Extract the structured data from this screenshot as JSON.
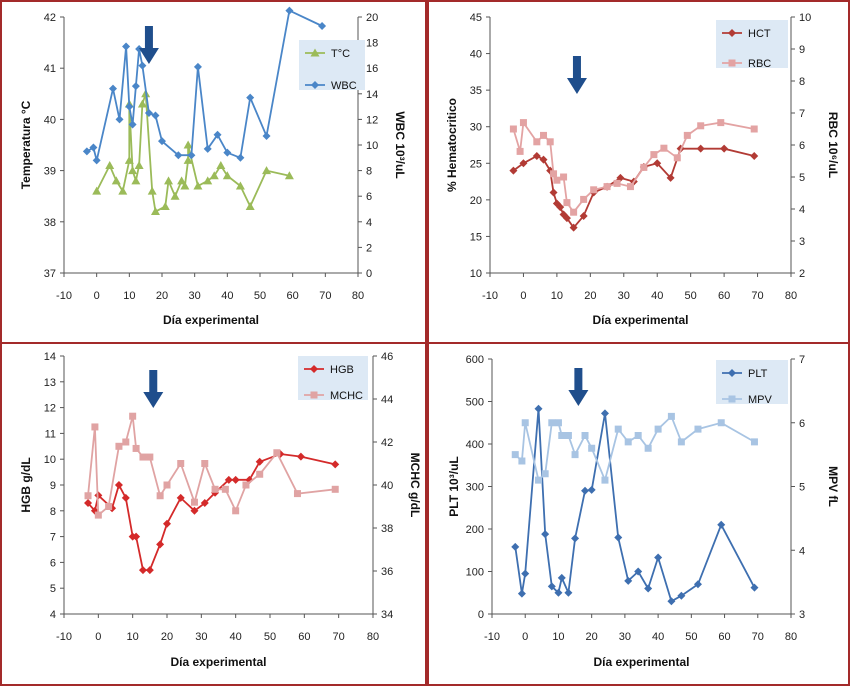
{
  "chart_data": [
    {
      "type": "line",
      "xlabel": "Día experimental",
      "ylabel_left": "Temperatura  °C",
      "ylabel_right": "WBC 10³/uL",
      "xlim": [
        -10,
        80
      ],
      "ylim_left": [
        37,
        42
      ],
      "ylim_right": [
        0,
        20
      ],
      "x_ticks": [
        "-10",
        "0",
        "10",
        "20",
        "30",
        "40",
        "50",
        "60",
        "70",
        "80"
      ],
      "y_ticks_left": [
        "37",
        "38",
        "39",
        "40",
        "41",
        "42"
      ],
      "y_ticks_right": [
        "0",
        "2",
        "4",
        "6",
        "8",
        "10",
        "12",
        "14",
        "16",
        "18",
        "20"
      ],
      "legend_position": "top-right",
      "arrow_day": 16,
      "series": [
        {
          "name": "T°C",
          "axis": "left",
          "color": "#9bbb59",
          "marker": "triangle",
          "points": [
            [
              0,
              38.6
            ],
            [
              4,
              39.1
            ],
            [
              6,
              38.8
            ],
            [
              8,
              38.6
            ],
            [
              10,
              39.2
            ],
            [
              10,
              40.3
            ],
            [
              11,
              39.0
            ],
            [
              12,
              38.8
            ],
            [
              13,
              39.1
            ],
            [
              14,
              40.3
            ],
            [
              15,
              40.5
            ],
            [
              17,
              38.6
            ],
            [
              18,
              38.2
            ],
            [
              21,
              38.3
            ],
            [
              22,
              38.8
            ],
            [
              24,
              38.5
            ],
            [
              26,
              38.8
            ],
            [
              27,
              38.7
            ],
            [
              28,
              39.2
            ],
            [
              28,
              39.5
            ],
            [
              31,
              38.7
            ],
            [
              34,
              38.8
            ],
            [
              36,
              38.9
            ],
            [
              38,
              39.1
            ],
            [
              40,
              38.9
            ],
            [
              44,
              38.7
            ],
            [
              47,
              38.3
            ],
            [
              52,
              39.0
            ],
            [
              59,
              38.9
            ]
          ]
        },
        {
          "name": "WBC",
          "axis": "right",
          "color": "#4a86c8",
          "marker": "diamond",
          "points": [
            [
              -3,
              9.5
            ],
            [
              -1,
              9.8
            ],
            [
              0,
              8.8
            ],
            [
              5,
              14.4
            ],
            [
              7,
              12.0
            ],
            [
              9,
              17.7
            ],
            [
              10,
              13.0
            ],
            [
              11,
              11.6
            ],
            [
              12,
              14.6
            ],
            [
              13,
              17.5
            ],
            [
              14,
              16.2
            ],
            [
              16,
              12.5
            ],
            [
              18,
              12.3
            ],
            [
              20,
              10.3
            ],
            [
              25,
              9.2
            ],
            [
              29,
              9.2
            ],
            [
              31,
              16.1
            ],
            [
              34,
              9.7
            ],
            [
              37,
              10.8
            ],
            [
              40,
              9.4
            ],
            [
              44,
              9.0
            ],
            [
              47,
              13.7
            ],
            [
              52,
              10.7
            ],
            [
              59,
              20.5
            ],
            [
              69,
              19.3
            ]
          ]
        }
      ]
    },
    {
      "type": "line",
      "xlabel": "Día experimental",
      "ylabel_left": "% Hematocritico",
      "ylabel_right": "RBC 10⁶/uL",
      "xlim": [
        -10,
        80
      ],
      "ylim_left": [
        10,
        45
      ],
      "ylim_right": [
        2,
        10
      ],
      "x_ticks": [
        "-10",
        "0",
        "10",
        "20",
        "30",
        "40",
        "50",
        "60",
        "70",
        "80"
      ],
      "y_ticks_left": [
        "10",
        "15",
        "20",
        "25",
        "30",
        "35",
        "40",
        "45"
      ],
      "y_ticks_right": [
        "2",
        "3",
        "4",
        "5",
        "6",
        "7",
        "8",
        "9",
        "10"
      ],
      "legend_position": "top-right",
      "arrow_day": 16,
      "series": [
        {
          "name": "HCT",
          "axis": "left",
          "color": "#b23b35",
          "marker": "diamond",
          "points": [
            [
              -3,
              24
            ],
            [
              0,
              25
            ],
            [
              4,
              26
            ],
            [
              6,
              25.5
            ],
            [
              8,
              24
            ],
            [
              9,
              21
            ],
            [
              10,
              19.5
            ],
            [
              11,
              19
            ],
            [
              12,
              18
            ],
            [
              13,
              17.5
            ],
            [
              15,
              16.2
            ],
            [
              18,
              17.8
            ],
            [
              21,
              21
            ],
            [
              25,
              21.8
            ],
            [
              29,
              23
            ],
            [
              33,
              22.5
            ],
            [
              36,
              24.5
            ],
            [
              40,
              25
            ],
            [
              44,
              23
            ],
            [
              47,
              27
            ],
            [
              53,
              27
            ],
            [
              60,
              27
            ],
            [
              69,
              26
            ]
          ]
        },
        {
          "name": "RBC",
          "axis": "right",
          "color": "#e3a3a3",
          "marker": "square",
          "points": [
            [
              -3,
              6.5
            ],
            [
              -1,
              5.8
            ],
            [
              0,
              6.7
            ],
            [
              4,
              6.1
            ],
            [
              6,
              6.3
            ],
            [
              8,
              6.1
            ],
            [
              9,
              5.1
            ],
            [
              10,
              4.9
            ],
            [
              12,
              5.0
            ],
            [
              13,
              4.2
            ],
            [
              15,
              3.9
            ],
            [
              18,
              4.3
            ],
            [
              21,
              4.6
            ],
            [
              25,
              4.7
            ],
            [
              28,
              4.8
            ],
            [
              32,
              4.7
            ],
            [
              36,
              5.3
            ],
            [
              39,
              5.7
            ],
            [
              42,
              5.9
            ],
            [
              46,
              5.6
            ],
            [
              49,
              6.3
            ],
            [
              53,
              6.6
            ],
            [
              59,
              6.7
            ],
            [
              69,
              6.5
            ]
          ]
        }
      ]
    },
    {
      "type": "line",
      "xlabel": "Día experimental",
      "ylabel_left": "HGB g/dL",
      "ylabel_right": "MCHC g/dL",
      "xlim": [
        -10,
        80
      ],
      "ylim_left": [
        4,
        14
      ],
      "ylim_right": [
        34,
        46
      ],
      "x_ticks": [
        "-10",
        "0",
        "10",
        "20",
        "30",
        "40",
        "50",
        "60",
        "70",
        "80"
      ],
      "y_ticks_left": [
        "4",
        "5",
        "6",
        "7",
        "8",
        "9",
        "10",
        "11",
        "12",
        "13",
        "14"
      ],
      "y_ticks_right": [
        "34",
        "36",
        "38",
        "40",
        "42",
        "44",
        "46"
      ],
      "legend_position": "top-right",
      "arrow_day": 16,
      "series": [
        {
          "name": "HGB",
          "axis": "left",
          "color": "#d42a2a",
          "marker": "diamond",
          "points": [
            [
              -3,
              8.3
            ],
            [
              -1,
              8.0
            ],
            [
              0,
              8.6
            ],
            [
              4,
              8.1
            ],
            [
              6,
              9.0
            ],
            [
              8,
              8.5
            ],
            [
              10,
              7.0
            ],
            [
              11,
              7.0
            ],
            [
              13,
              5.7
            ],
            [
              15,
              5.7
            ],
            [
              18,
              6.7
            ],
            [
              20,
              7.5
            ],
            [
              24,
              8.5
            ],
            [
              28,
              8.0
            ],
            [
              31,
              8.3
            ],
            [
              34,
              8.7
            ],
            [
              38,
              9.2
            ],
            [
              40,
              9.2
            ],
            [
              44,
              9.2
            ],
            [
              47,
              9.9
            ],
            [
              53,
              10.2
            ],
            [
              59,
              10.1
            ],
            [
              69,
              9.8
            ]
          ]
        },
        {
          "name": "MCHC",
          "axis": "right",
          "color": "#e0a3a3",
          "marker": "square",
          "points": [
            [
              -3,
              39.5
            ],
            [
              -1,
              42.7
            ],
            [
              0,
              38.6
            ],
            [
              3,
              39.0
            ],
            [
              6,
              41.8
            ],
            [
              8,
              42.0
            ],
            [
              10,
              43.2
            ],
            [
              11,
              41.7
            ],
            [
              13,
              41.3
            ],
            [
              15,
              41.3
            ],
            [
              18,
              39.5
            ],
            [
              20,
              40.0
            ],
            [
              24,
              41.0
            ],
            [
              28,
              39.2
            ],
            [
              31,
              41.0
            ],
            [
              34,
              39.8
            ],
            [
              37,
              39.8
            ],
            [
              40,
              38.8
            ],
            [
              43,
              40.0
            ],
            [
              47,
              40.5
            ],
            [
              52,
              41.5
            ],
            [
              58,
              39.6
            ],
            [
              69,
              39.8
            ]
          ]
        }
      ]
    },
    {
      "type": "line",
      "xlabel": "Día experimental",
      "ylabel_left": "PLT 10³/uL",
      "ylabel_right": "MPV fL",
      "xlim": [
        -10,
        80
      ],
      "ylim_left": [
        0,
        600
      ],
      "ylim_right": [
        3,
        7
      ],
      "x_ticks": [
        "-10",
        "0",
        "10",
        "20",
        "30",
        "40",
        "50",
        "60",
        "70",
        "80"
      ],
      "y_ticks_left": [
        "0",
        "100",
        "200",
        "300",
        "400",
        "500",
        "600"
      ],
      "y_ticks_right": [
        "3",
        "4",
        "5",
        "6",
        "7"
      ],
      "legend_position": "top-right",
      "arrow_day": 16,
      "series": [
        {
          "name": "PLT",
          "axis": "left",
          "color": "#3e6fb0",
          "marker": "diamond",
          "points": [
            [
              -3,
              158
            ],
            [
              -1,
              48
            ],
            [
              0,
              95
            ],
            [
              4,
              483
            ],
            [
              6,
              188
            ],
            [
              8,
              65
            ],
            [
              10,
              50
            ],
            [
              11,
              85
            ],
            [
              13,
              50
            ],
            [
              15,
              178
            ],
            [
              18,
              290
            ],
            [
              20,
              292
            ],
            [
              24,
              472
            ],
            [
              28,
              180
            ],
            [
              31,
              78
            ],
            [
              34,
              100
            ],
            [
              37,
              60
            ],
            [
              40,
              133
            ],
            [
              44,
              30
            ],
            [
              47,
              43
            ],
            [
              52,
              70
            ],
            [
              59,
              210
            ],
            [
              69,
              62
            ]
          ]
        },
        {
          "name": "MPV",
          "axis": "right",
          "color": "#a8c4e3",
          "marker": "square",
          "points": [
            [
              -3,
              5.5
            ],
            [
              -1,
              5.4
            ],
            [
              0,
              6.0
            ],
            [
              4,
              5.1
            ],
            [
              6,
              5.2
            ],
            [
              8,
              6.0
            ],
            [
              10,
              6.0
            ],
            [
              11,
              5.8
            ],
            [
              13,
              5.8
            ],
            [
              15,
              5.5
            ],
            [
              18,
              5.8
            ],
            [
              20,
              5.6
            ],
            [
              24,
              5.1
            ],
            [
              28,
              5.9
            ],
            [
              31,
              5.7
            ],
            [
              34,
              5.8
            ],
            [
              37,
              5.6
            ],
            [
              40,
              5.9
            ],
            [
              44,
              6.1
            ],
            [
              47,
              5.7
            ],
            [
              52,
              5.9
            ],
            [
              59,
              6.0
            ],
            [
              69,
              5.7
            ]
          ]
        }
      ]
    }
  ]
}
